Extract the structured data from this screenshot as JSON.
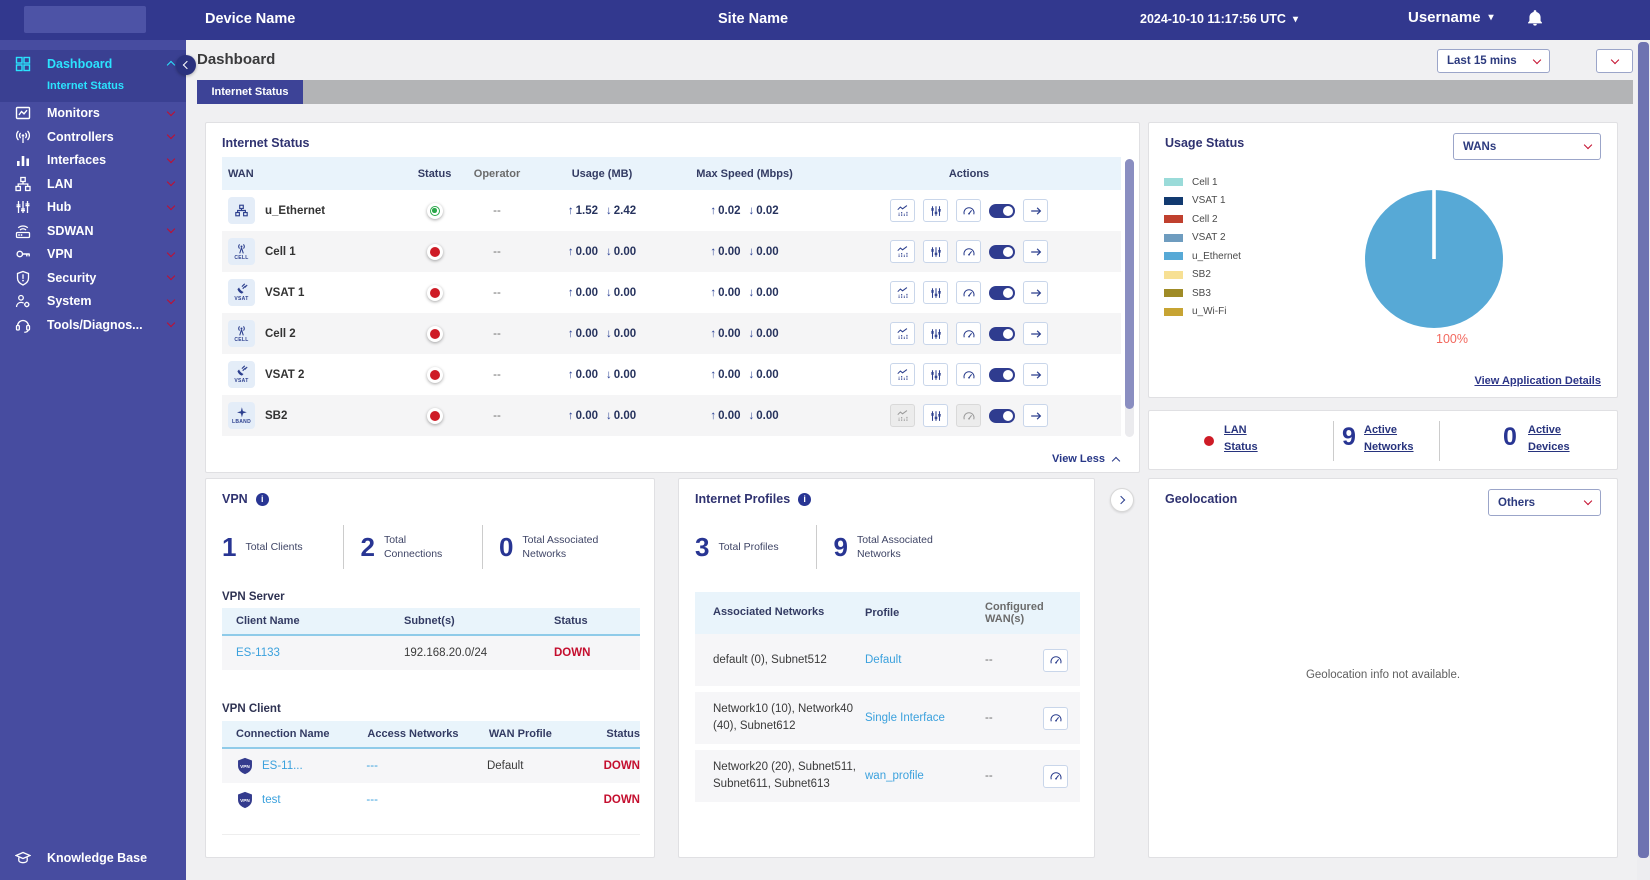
{
  "header": {
    "device_name": "Device Name",
    "site_name": "Site Name",
    "datetime": "2024-10-10 11:17:56 UTC",
    "username": "Username"
  },
  "sidebar": {
    "items": [
      {
        "label": "Dashboard",
        "icon": "dashboard-icon",
        "active": true,
        "expanded": true,
        "sub": [
          {
            "label": "Internet Status",
            "active": true
          }
        ]
      },
      {
        "label": "Monitors",
        "icon": "monitors-icon"
      },
      {
        "label": "Controllers",
        "icon": "controllers-icon"
      },
      {
        "label": "Interfaces",
        "icon": "interfaces-icon"
      },
      {
        "label": "LAN",
        "icon": "lan-icon"
      },
      {
        "label": "Hub",
        "icon": "hub-icon"
      },
      {
        "label": "SDWAN",
        "icon": "sdwan-icon"
      },
      {
        "label": "VPN",
        "icon": "vpn-icon"
      },
      {
        "label": "Security",
        "icon": "security-icon"
      },
      {
        "label": "System",
        "icon": "system-icon"
      },
      {
        "label": "Tools/Diagnos...",
        "icon": "tools-icon"
      }
    ],
    "footer": {
      "label": "Knowledge Base",
      "icon": "knowledge-icon"
    }
  },
  "page": {
    "title": "Dashboard",
    "time_filter": "Last 15 mins",
    "tab": "Internet Status"
  },
  "internet_status": {
    "title": "Internet Status",
    "columns": [
      "WAN",
      "Status",
      "Operator",
      "Usage (MB)",
      "Max Speed (Mbps)",
      "Actions"
    ],
    "rows": [
      {
        "name": "u_Ethernet",
        "icon": "ethernet-icon",
        "icon_label": "",
        "status": "up",
        "operator": "--",
        "usage_up": "1.52",
        "usage_down": "2.42",
        "speed_up": "0.02",
        "speed_down": "0.02",
        "disabled": []
      },
      {
        "name": "Cell 1",
        "icon": "cell-icon",
        "icon_label": "CELL",
        "status": "down",
        "operator": "--",
        "usage_up": "0.00",
        "usage_down": "0.00",
        "speed_up": "0.00",
        "speed_down": "0.00",
        "disabled": []
      },
      {
        "name": "VSAT 1",
        "icon": "vsat-icon",
        "icon_label": "VSAT",
        "status": "down",
        "operator": "--",
        "usage_up": "0.00",
        "usage_down": "0.00",
        "speed_up": "0.00",
        "speed_down": "0.00",
        "disabled": []
      },
      {
        "name": "Cell 2",
        "icon": "cell-icon",
        "icon_label": "CELL",
        "status": "down",
        "operator": "--",
        "usage_up": "0.00",
        "usage_down": "0.00",
        "speed_up": "0.00",
        "speed_down": "0.00",
        "disabled": []
      },
      {
        "name": "VSAT 2",
        "icon": "vsat-icon",
        "icon_label": "VSAT",
        "status": "down",
        "operator": "--",
        "usage_up": "0.00",
        "usage_down": "0.00",
        "speed_up": "0.00",
        "speed_down": "0.00",
        "disabled": []
      },
      {
        "name": "SB2",
        "icon": "lband-icon",
        "icon_label": "LBAND",
        "status": "down",
        "operator": "--",
        "usage_up": "0.00",
        "usage_down": "0.00",
        "speed_up": "0.00",
        "speed_down": "0.00",
        "disabled": [
          "chart",
          "gauge"
        ]
      }
    ],
    "view_less": "View Less"
  },
  "usage_status": {
    "title": "Usage Status",
    "filter": "WANs",
    "legend": [
      {
        "label": "Cell 1",
        "color": "#9adbd9"
      },
      {
        "label": "VSAT 1",
        "color": "#123a70"
      },
      {
        "label": "Cell 2",
        "color": "#c0402e"
      },
      {
        "label": "VSAT 2",
        "color": "#6e9cbf"
      },
      {
        "label": "u_Ethernet",
        "color": "#57a9d6"
      },
      {
        "label": "SB2",
        "color": "#f7e094"
      },
      {
        "label": "SB3",
        "color": "#9f8b26"
      },
      {
        "label": "u_Wi-Fi",
        "color": "#c7a433"
      }
    ],
    "chart_data": {
      "type": "pie",
      "labels": [
        "Cell 1",
        "VSAT 1",
        "Cell 2",
        "VSAT 2",
        "u_Ethernet",
        "SB2",
        "SB3",
        "u_Wi-Fi"
      ],
      "values": [
        0,
        0,
        0,
        0,
        100,
        0,
        0,
        0
      ],
      "unit": "%",
      "annotation": "100%",
      "legend_position": "left"
    },
    "link": "View Application Details"
  },
  "lan_summary": {
    "status_label": "LAN Status",
    "status_color": "#ce1b26",
    "stats": [
      {
        "value": "9",
        "label": "Active Networks"
      },
      {
        "value": "0",
        "label": "Active Devices"
      }
    ]
  },
  "vpn": {
    "title": "VPN",
    "stats": [
      {
        "value": "1",
        "label": "Total Clients"
      },
      {
        "value": "2",
        "label": "Total Connections"
      },
      {
        "value": "0",
        "label": "Total Associated Networks"
      }
    ],
    "server": {
      "title": "VPN Server",
      "columns": [
        "Client Name",
        "Subnet(s)",
        "Status"
      ],
      "rows": [
        {
          "client": "ES-1133",
          "subnets": "192.168.20.0/24",
          "status": "DOWN"
        }
      ]
    },
    "client": {
      "title": "VPN Client",
      "columns": [
        "Connection Name",
        "Access Networks",
        "WAN Profile",
        "Status"
      ],
      "rows": [
        {
          "name": "ES-11...",
          "access": "---",
          "profile": "Default",
          "status": "DOWN"
        },
        {
          "name": "test",
          "access": "---",
          "profile": "",
          "status": "DOWN"
        }
      ]
    }
  },
  "internet_profiles": {
    "title": "Internet Profiles",
    "stats": [
      {
        "value": "3",
        "label": "Total Profiles"
      },
      {
        "value": "9",
        "label": "Total Associated Networks"
      }
    ],
    "columns": [
      "Associated Networks",
      "Profile",
      "Configured WAN(s)",
      ""
    ],
    "rows": [
      {
        "networks": "default (0), Subnet512",
        "profile": "Default",
        "wans": "--"
      },
      {
        "networks": "Network10 (10), Network40 (40), Subnet612",
        "profile": "Single Interface",
        "wans": "--"
      },
      {
        "networks": "Network20 (20), Subnet511, Subnet611, Subnet613",
        "profile": "wan_profile",
        "wans": "--"
      }
    ]
  },
  "geolocation": {
    "title": "Geolocation",
    "filter": "Others",
    "message": "Geolocation info not available."
  },
  "colors": {
    "header_bg": "#32388e",
    "sidebar_bg": "#474ca0",
    "sidebar_active_text": "#2be3fe",
    "tab_active_bg": "#3d4397",
    "status_up": "#2ba84a",
    "status_down": "#ce1b26",
    "down_text": "#c40e2e",
    "link_blue": "#3ba1dd",
    "pie_fill": "#57a9d6",
    "pie_label": "#f2685e",
    "accent_navy": "#283593"
  }
}
